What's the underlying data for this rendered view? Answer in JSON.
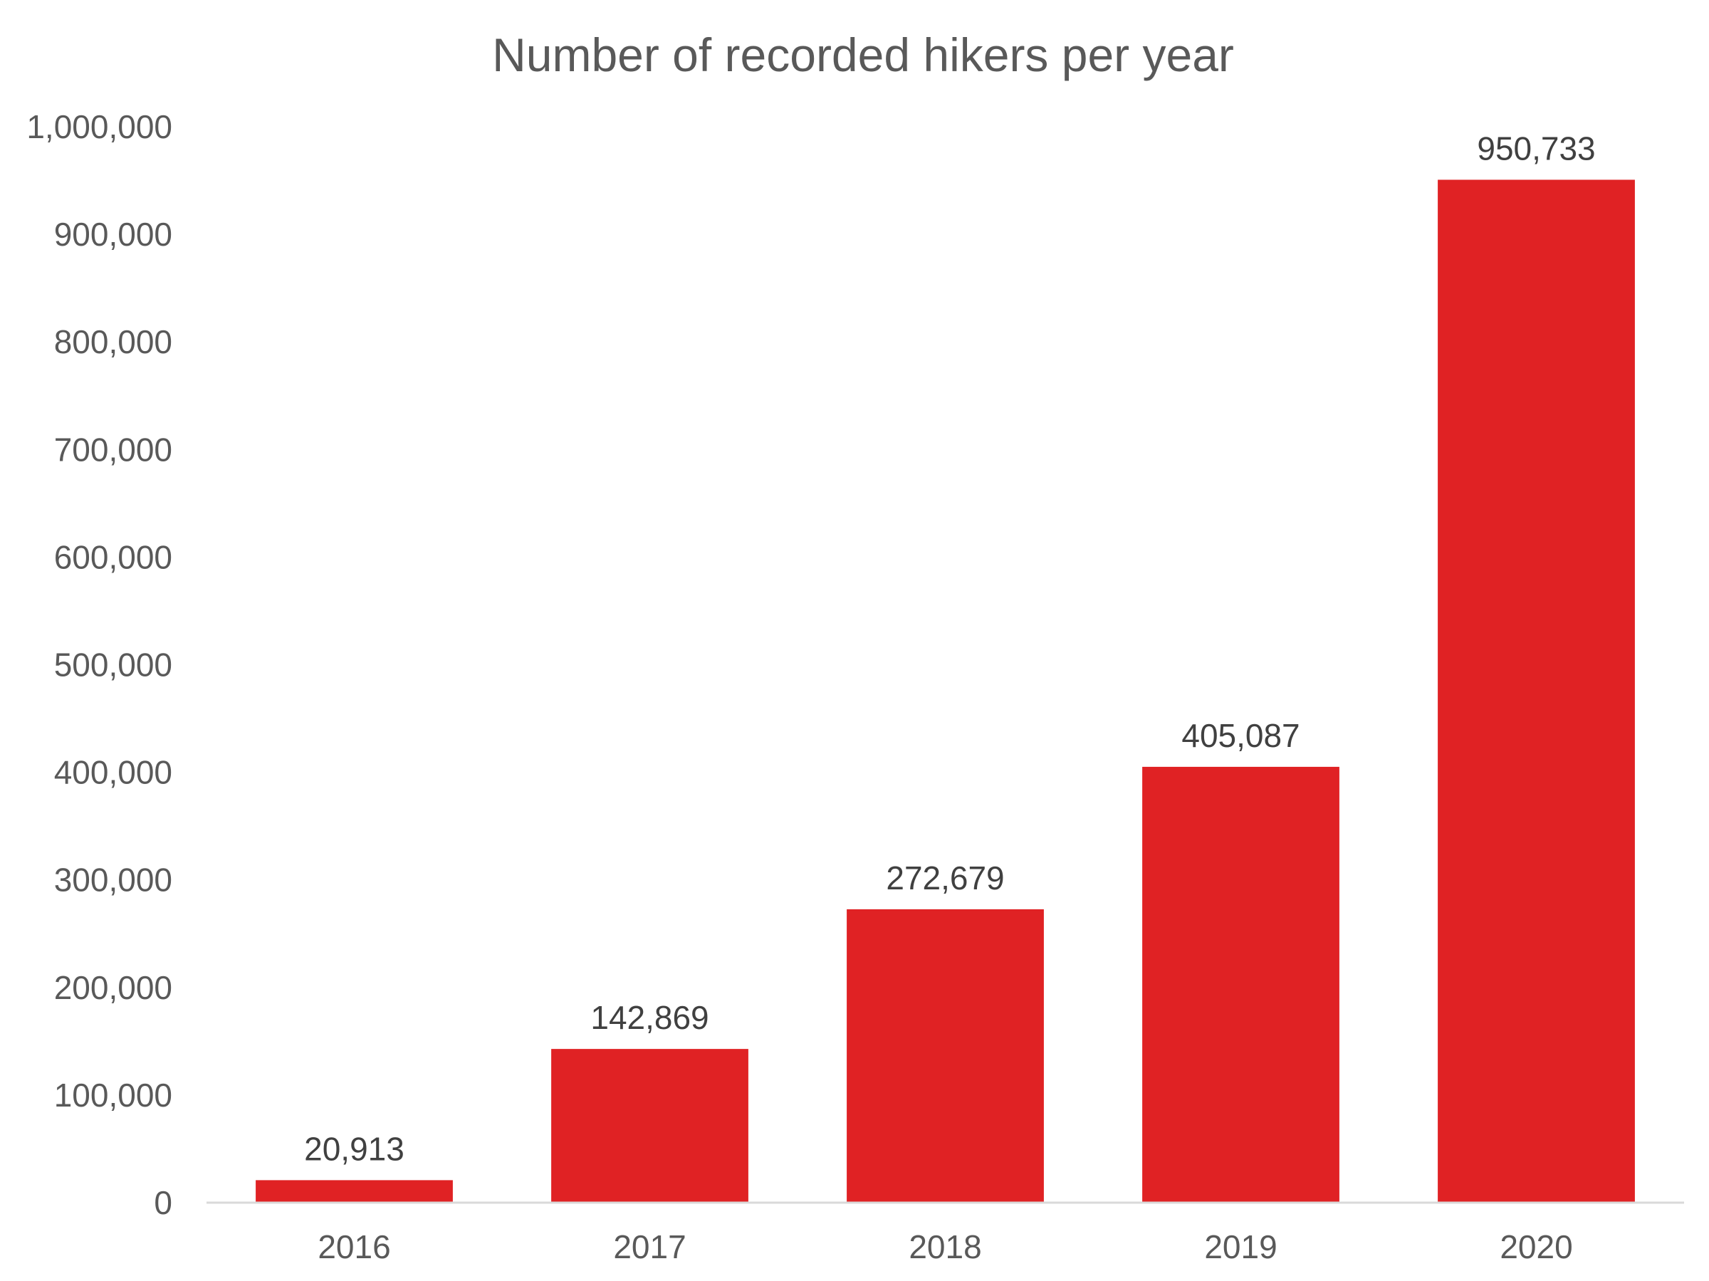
{
  "colors": {
    "bar": "#e02224",
    "axis_line": "#d9d9d9",
    "text": "#595959",
    "data_label": "#404040",
    "background": "#ffffff"
  },
  "chart_data": {
    "type": "bar",
    "title": "Number of recorded hikers per year",
    "xlabel": "",
    "ylabel": "",
    "categories": [
      "2016",
      "2017",
      "2018",
      "2019",
      "2020"
    ],
    "values": [
      20913,
      142869,
      272679,
      405087,
      950733
    ],
    "data_labels": [
      "20,913",
      "142,869",
      "272,679",
      "405,087",
      "950,733"
    ],
    "ylim": [
      0,
      1000000
    ],
    "yticks": [
      0,
      100000,
      200000,
      300000,
      400000,
      500000,
      600000,
      700000,
      800000,
      900000,
      1000000
    ],
    "ytick_labels": [
      "0",
      "100,000",
      "200,000",
      "300,000",
      "400,000",
      "500,000",
      "600,000",
      "700,000",
      "800,000",
      "900,000",
      "1,000,000"
    ],
    "grid": false,
    "legend": "none"
  }
}
